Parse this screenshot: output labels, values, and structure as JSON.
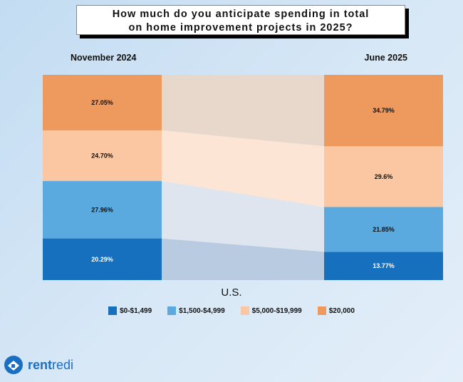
{
  "chart_data": {
    "type": "bar",
    "subtype": "stacked-100-with-flows",
    "title": "How much do you anticipate spending in total\non home improvement projects in 2025?",
    "categories": [
      "November 2024",
      "June 2025"
    ],
    "xlabel": "U.S.",
    "legend_position": "bottom",
    "series": [
      {
        "name": "$0-$1,499",
        "color": "#1670bd",
        "values": [
          20.29,
          13.77
        ],
        "labels": [
          "20.29%",
          "13.77%"
        ]
      },
      {
        "name": "$1,500-$4,999",
        "color": "#5aaadf",
        "values": [
          27.96,
          21.85
        ],
        "labels": [
          "27.96%",
          "21.85%"
        ]
      },
      {
        "name": "$5,000-$19,999",
        "color": "#fbc7a2",
        "values": [
          24.7,
          29.6
        ],
        "labels": [
          "24.70%",
          "29.6%"
        ]
      },
      {
        "name": "$20,000",
        "color": "#ee9a5e",
        "values": [
          27.05,
          34.79
        ],
        "labels": [
          "27.05%",
          "34.79%"
        ]
      }
    ],
    "flow_colors": [
      "#b8cbe0",
      "#dfe5ee",
      "#fde5d6",
      "#e8d8cc"
    ]
  },
  "brand": {
    "logo_text_a": "rent",
    "logo_text_b": "redi"
  }
}
